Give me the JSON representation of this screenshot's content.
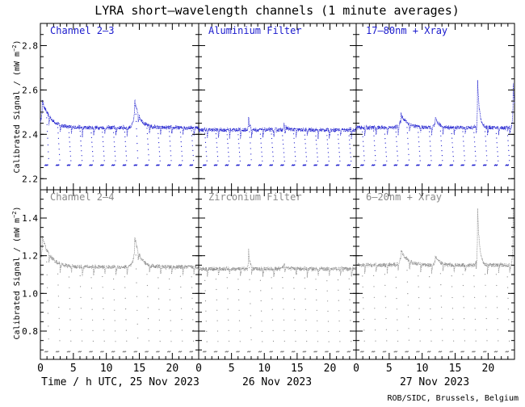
{
  "title": "LYRA short–wavelength channels (1 minute averages)",
  "ylabel_main": "Calibrated Signal / (mW m",
  "ylabel_exp": "−2",
  "ylabel_close": ")",
  "credit": "ROB/SIDC, Brussels, Belgium",
  "x_axis": {
    "title_prefix": "Time / h UTC, ",
    "days": [
      "25 Nov 2023",
      "26 Nov 2023",
      "27 Nov 2023"
    ],
    "hour_ticks": [
      0,
      5,
      10,
      15,
      20
    ],
    "hour_tick_labels": [
      "0",
      "5",
      "10",
      "15",
      "20"
    ],
    "range_hours": [
      0,
      24
    ]
  },
  "colors": {
    "top": "#1a1acd",
    "bottom": "#8a8a8a",
    "axis": "#000000"
  },
  "chart_data": [
    {
      "type": "scatter",
      "row": "top",
      "ylim": [
        2.15,
        2.9
      ],
      "yticks": [
        2.2,
        2.4,
        2.6,
        2.8
      ],
      "ytick_labels": [
        "2.2",
        "2.4",
        "2.6",
        "2.8"
      ],
      "panels": [
        {
          "label": "Channel 2–3",
          "base": 2.43,
          "dip": 2.26,
          "features": [
            [
              0.3,
              0.12,
              1.2
            ],
            [
              14.3,
              0.12,
              0.8
            ]
          ]
        },
        {
          "label": "Aluminium Filter",
          "base": 2.42,
          "dip": 2.26,
          "features": [
            [
              7.6,
              0.06,
              0.2
            ],
            [
              13.0,
              0.02,
              0.5
            ]
          ]
        },
        {
          "label": "17–80nm + Xray",
          "base": 2.43,
          "dip": 2.26,
          "features": [
            [
              6.8,
              0.06,
              1.0
            ],
            [
              18.4,
              0.21,
              0.3
            ],
            [
              23.8,
              0.2,
              0.3
            ],
            [
              12.0,
              0.04,
              0.6
            ]
          ]
        }
      ]
    },
    {
      "type": "scatter",
      "row": "bottom",
      "ylim": [
        0.65,
        1.55
      ],
      "yticks": [
        0.8,
        1.0,
        1.2,
        1.4
      ],
      "ytick_labels": [
        "0.8",
        "1.0",
        "1.2",
        "1.4"
      ],
      "panels": [
        {
          "label": "Channel 2–4",
          "base": 1.14,
          "dip": 0.69,
          "features": [
            [
              0.3,
              0.16,
              1.2
            ],
            [
              14.3,
              0.16,
              0.8
            ]
          ]
        },
        {
          "label": "Zirconium Filter",
          "base": 1.13,
          "dip": 0.69,
          "features": [
            [
              7.6,
              0.1,
              0.2
            ],
            [
              13.0,
              0.03,
              0.5
            ]
          ]
        },
        {
          "label": "6–20nm + Xray",
          "base": 1.15,
          "dip": 0.69,
          "features": [
            [
              6.8,
              0.08,
              1.0
            ],
            [
              18.4,
              0.3,
              0.3
            ],
            [
              23.8,
              0.3,
              0.3
            ],
            [
              12.0,
              0.05,
              0.6
            ]
          ]
        }
      ]
    }
  ]
}
